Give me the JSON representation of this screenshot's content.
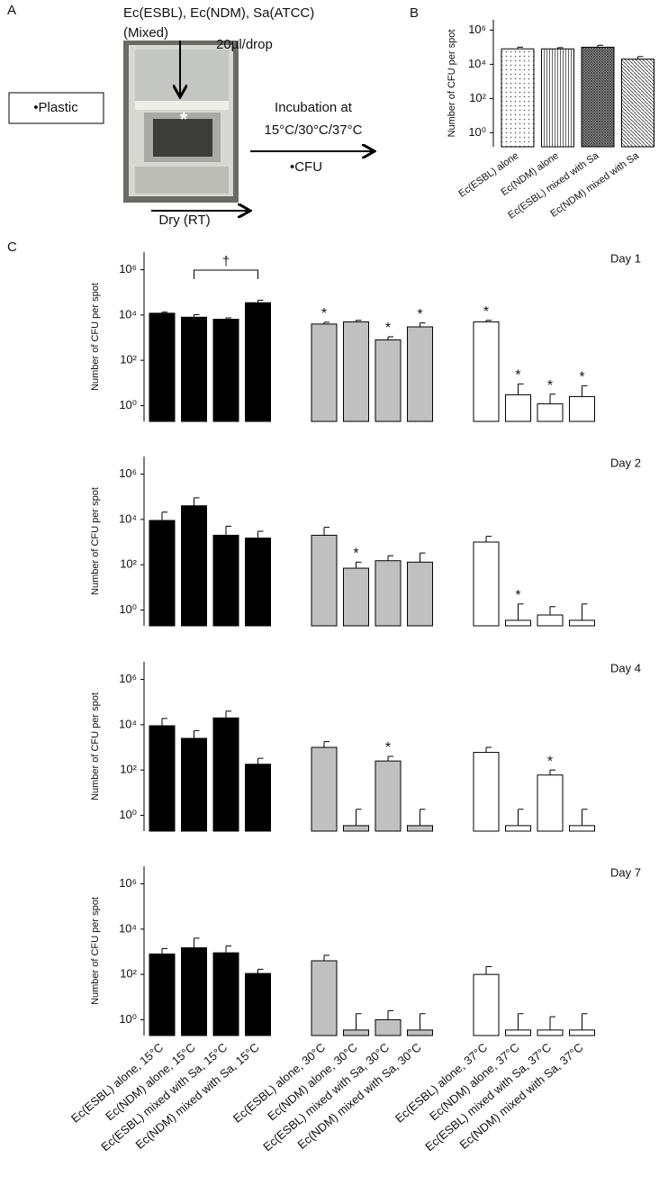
{
  "panel_labels": {
    "a": "A",
    "b": "B",
    "c": "C"
  },
  "panel_a": {
    "mix": "Ec(ESBL), Ec(NDM), Sa(ATCC)",
    "mixed": "(Mixed)",
    "drop": "20µl/drop",
    "spot": "*",
    "surface": "•Plastic",
    "incubation": "Incubation at",
    "temps": "15°C/30°C/37°C",
    "readout": "•CFU",
    "dry": "Dry (RT)"
  },
  "chart_data": [
    {
      "type": "bar",
      "log_scale": true,
      "ylabel": "Number of CFU per spot",
      "categories": [
        "Ec(ESBL) alone",
        "Ec(NDM) alone",
        "Ec(ESBL) mixed  with Sa",
        "Ec(NDM) mixed with Sa"
      ],
      "values": [
        80000,
        80000,
        100000,
        20000
      ],
      "errors": [
        20000,
        15000,
        30000,
        8000
      ],
      "fills": [
        "dots",
        "vertical",
        "crosshatch",
        "diagonal"
      ],
      "ylim": [
        0.15,
        4000000
      ],
      "yticks": [
        {
          "value": 1,
          "label": "10⁰"
        },
        {
          "value": 100,
          "label": "10²"
        },
        {
          "value": 10000,
          "label": "10⁴"
        },
        {
          "value": 1000000,
          "label": "10⁶"
        }
      ]
    },
    {
      "type": "bar",
      "log_scale": true,
      "title": "Day 1",
      "ylabel": "Number of CFU per spot",
      "values": [
        12000,
        8000,
        6500,
        35000,
        4000,
        5000,
        800,
        3000,
        5000,
        3,
        1.2,
        2.5
      ],
      "errors": [
        1500,
        2500,
        1000,
        10000,
        800,
        800,
        300,
        1500,
        800,
        6,
        2,
        5
      ],
      "colors": [
        "#000000",
        "#000000",
        "#000000",
        "#000000",
        "#c0c0c0",
        "#c0c0c0",
        "#c0c0c0",
        "#c0c0c0",
        "#ffffff",
        "#ffffff",
        "#ffffff",
        "#ffffff"
      ],
      "significance": [
        null,
        null,
        null,
        null,
        "*",
        null,
        "*",
        "*",
        "*",
        "*",
        "*",
        "*"
      ],
      "bracket": "†",
      "ylim": [
        0.2,
        6000000
      ],
      "yticks": [
        {
          "value": 1,
          "label": "10⁰"
        },
        {
          "value": 100,
          "label": "10²"
        },
        {
          "value": 10000,
          "label": "10⁴"
        },
        {
          "value": 1000000,
          "label": "10⁶"
        }
      ]
    },
    {
      "type": "bar",
      "log_scale": true,
      "title": "Day 2",
      "ylabel": "Number of CFU per spot",
      "values": [
        9000,
        40000,
        2000,
        1500,
        2000,
        70,
        150,
        130,
        1000,
        0.35,
        0.6,
        0.35
      ],
      "errors": [
        12000,
        50000,
        3000,
        1500,
        2500,
        60,
        100,
        200,
        800,
        1.5,
        0.8,
        1.5
      ],
      "colors": [
        "#000000",
        "#000000",
        "#000000",
        "#000000",
        "#c0c0c0",
        "#c0c0c0",
        "#c0c0c0",
        "#c0c0c0",
        "#ffffff",
        "#ffffff",
        "#ffffff",
        "#ffffff"
      ],
      "significance": [
        null,
        null,
        null,
        null,
        null,
        "*",
        null,
        null,
        null,
        "*",
        null,
        null
      ],
      "ylim": [
        0.2,
        6000000
      ],
      "yticks": [
        {
          "value": 1,
          "label": "10⁰"
        },
        {
          "value": 100,
          "label": "10²"
        },
        {
          "value": 10000,
          "label": "10⁴"
        },
        {
          "value": 1000000,
          "label": "10⁶"
        }
      ]
    },
    {
      "type": "bar",
      "log_scale": true,
      "title": "Day 4",
      "ylabel": "Number of CFU per spot",
      "values": [
        9000,
        2500,
        20000,
        180,
        1000,
        0.35,
        250,
        0.35,
        600,
        0.35,
        60,
        0.35
      ],
      "errors": [
        10000,
        3000,
        20000,
        150,
        800,
        1.5,
        150,
        1.5,
        400,
        1.5,
        40,
        1.5
      ],
      "colors": [
        "#000000",
        "#000000",
        "#000000",
        "#000000",
        "#c0c0c0",
        "#c0c0c0",
        "#c0c0c0",
        "#c0c0c0",
        "#ffffff",
        "#ffffff",
        "#ffffff",
        "#ffffff"
      ],
      "significance": [
        null,
        null,
        null,
        null,
        null,
        null,
        "*",
        null,
        null,
        null,
        "*",
        null
      ],
      "ylim": [
        0.2,
        6000000
      ],
      "yticks": [
        {
          "value": 1,
          "label": "10⁰"
        },
        {
          "value": 100,
          "label": "10²"
        },
        {
          "value": 10000,
          "label": "10⁴"
        },
        {
          "value": 1000000,
          "label": "10⁶"
        }
      ]
    },
    {
      "type": "bar",
      "log_scale": true,
      "title": "Day 7",
      "ylabel": "Number of CFU per spot",
      "categories": [
        "Ec(ESBL) alone, 15°C",
        "Ec(NDM) alone, 15°C",
        "Ec(ESBL) mixed with Sa, 15°C",
        "Ec(NDM) mixed with Sa, 15°C",
        "Ec(ESBL) alone, 30°C",
        "Ec(NDM) alone, 30°C",
        "Ec(ESBL) mixed with Sa, 30°C",
        "Ec(NDM) mixed with Sa, 30°C",
        "Ec(ESBL) alone, 37°C",
        "Ec(NDM) alone, 37°C",
        "Ec(ESBL) mixed with Sa, 37°C",
        "Ec(NDM) mixed with Sa, 37°C"
      ],
      "values": [
        800,
        1500,
        900,
        110,
        400,
        0.35,
        1,
        0.35,
        100,
        0.35,
        0.35,
        0.35
      ],
      "errors": [
        600,
        2500,
        900,
        60,
        300,
        1.5,
        1.5,
        1.5,
        120,
        1.5,
        1,
        1.5
      ],
      "colors": [
        "#000000",
        "#000000",
        "#000000",
        "#000000",
        "#c0c0c0",
        "#c0c0c0",
        "#c0c0c0",
        "#c0c0c0",
        "#ffffff",
        "#ffffff",
        "#ffffff",
        "#ffffff"
      ],
      "ylim": [
        0.2,
        6000000
      ],
      "yticks": [
        {
          "value": 1,
          "label": "10⁰"
        },
        {
          "value": 100,
          "label": "10²"
        },
        {
          "value": 10000,
          "label": "10⁴"
        },
        {
          "value": 1000000,
          "label": "10⁶"
        }
      ]
    }
  ]
}
